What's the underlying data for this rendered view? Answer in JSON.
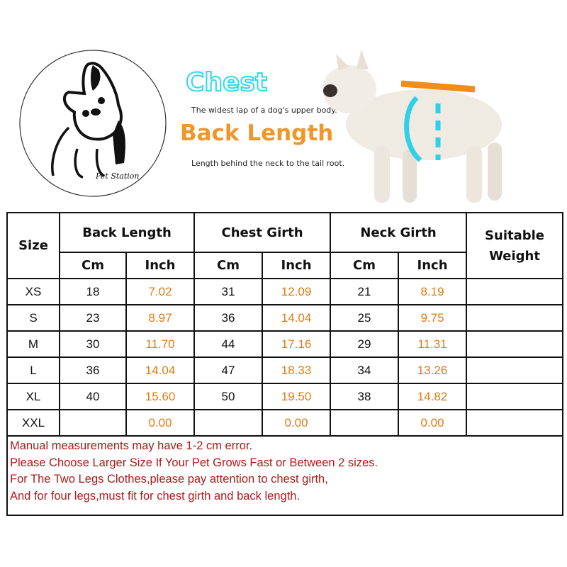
{
  "logo": {
    "brand": "Pet Station"
  },
  "guide": {
    "chest_title": "Chest",
    "chest_desc": "The widest lap of a dog's upper body.",
    "back_title": "Back Length",
    "back_desc": "Length behind the neck to the tail root.",
    "colors": {
      "chest": "#2fd7ec",
      "back": "#f0962a"
    }
  },
  "table": {
    "headers": {
      "size": "Size",
      "back": "Back Length",
      "chest": "Chest Girth",
      "neck": "Neck Girth",
      "weight": "Suitable Weight",
      "cm": "Cm",
      "inch": "Inch"
    },
    "rows": [
      {
        "size": "XS",
        "back_cm": "18",
        "back_in": "7.02",
        "chest_cm": "31",
        "chest_in": "12.09",
        "neck_cm": "21",
        "neck_in": "8.19",
        "weight": ""
      },
      {
        "size": "S",
        "back_cm": "23",
        "back_in": "8.97",
        "chest_cm": "36",
        "chest_in": "14.04",
        "neck_cm": "25",
        "neck_in": "9.75",
        "weight": ""
      },
      {
        "size": "M",
        "back_cm": "30",
        "back_in": "11.70",
        "chest_cm": "44",
        "chest_in": "17.16",
        "neck_cm": "29",
        "neck_in": "11.31",
        "weight": ""
      },
      {
        "size": "L",
        "back_cm": "36",
        "back_in": "14.04",
        "chest_cm": "47",
        "chest_in": "18.33",
        "neck_cm": "34",
        "neck_in": "13.26",
        "weight": ""
      },
      {
        "size": "XL",
        "back_cm": "40",
        "back_in": "15.60",
        "chest_cm": "50",
        "chest_in": "19.50",
        "neck_cm": "38",
        "neck_in": "14.82",
        "weight": ""
      },
      {
        "size": "XXL",
        "back_cm": "",
        "back_in": "0.00",
        "chest_cm": "",
        "chest_in": "0.00",
        "neck_cm": "",
        "neck_in": "0.00",
        "weight": ""
      }
    ],
    "notes": [
      "Manual measurements may have 1-2 cm error.",
      "Please Choose Larger Size If Your Pet Grows Fast or Between 2 sizes.",
      "For The Two Legs Clothes,please pay attention to chest girth,",
      "And for four legs,must fit for chest girth and back length."
    ]
  }
}
